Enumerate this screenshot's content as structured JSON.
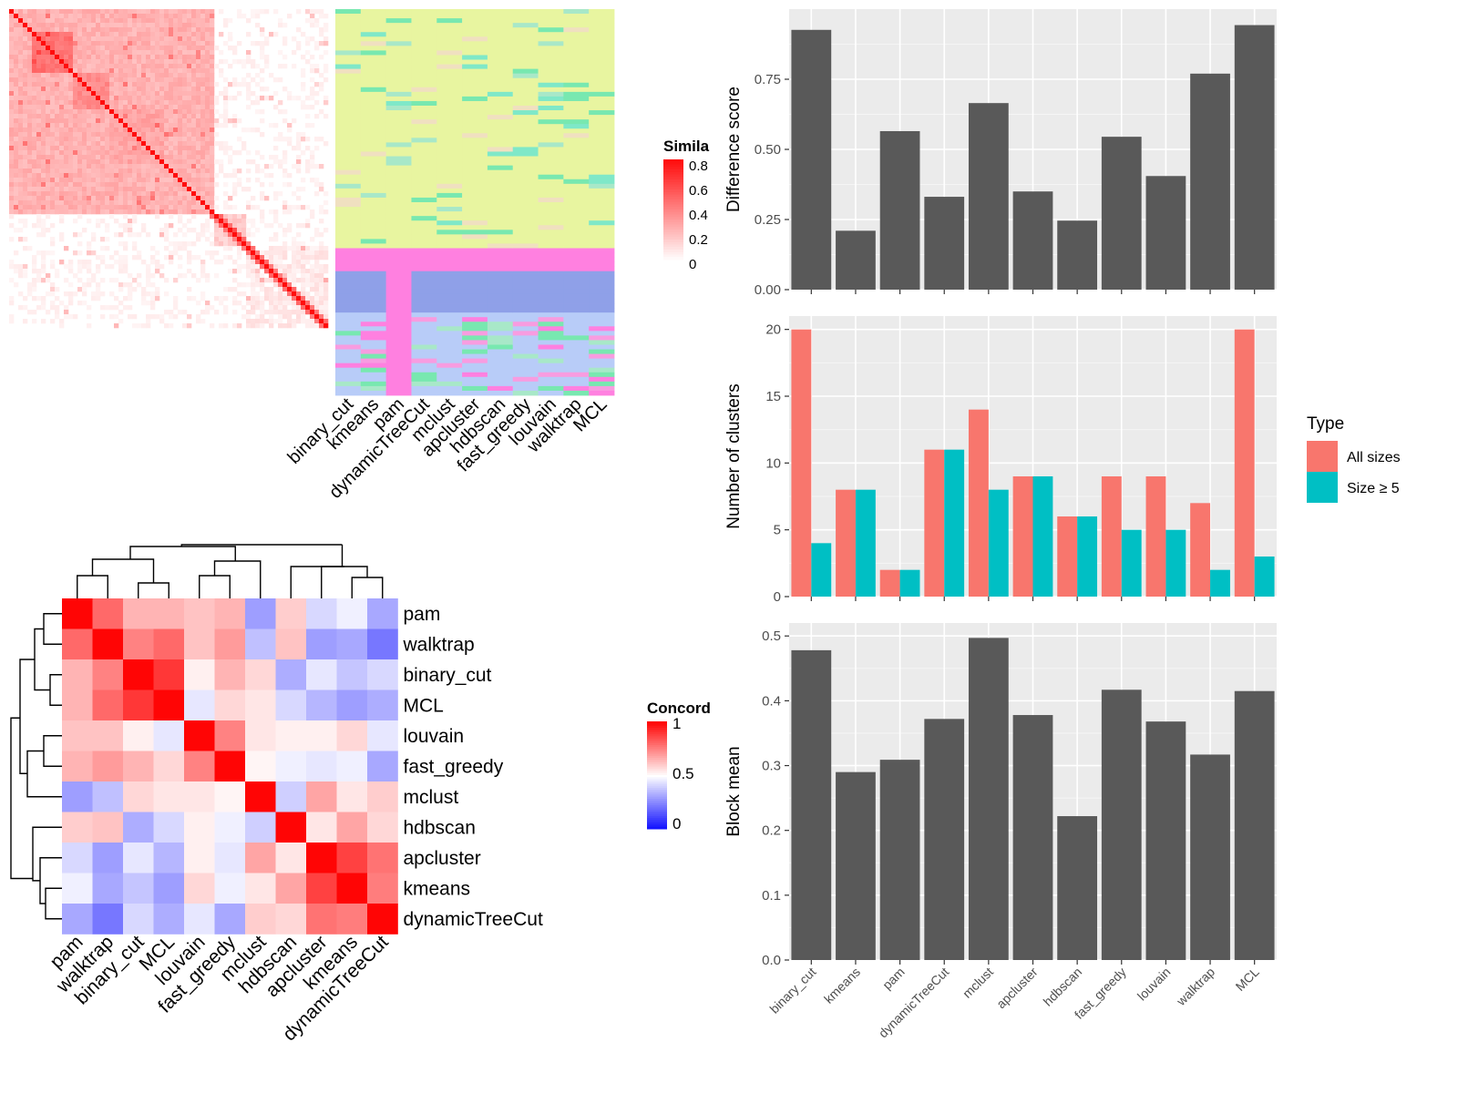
{
  "chart_data": [
    {
      "type": "heatmap",
      "panel": "similarity-matrix",
      "legend_title": "Similarity",
      "legend_ticks": [
        "0.8",
        "0.6",
        "0.4",
        "0.2",
        "0"
      ]
    },
    {
      "type": "heatmap",
      "panel": "cluster-assignments",
      "columns": [
        "binary_cut",
        "kmeans",
        "pam",
        "dynamicTreeCut",
        "mclust",
        "apcluster",
        "hdbscan",
        "fast_greedy",
        "louvain",
        "walktrap",
        "MCL"
      ]
    },
    {
      "type": "heatmap",
      "panel": "concordance-matrix",
      "legend_title": "Concordance",
      "legend_ticks": [
        "1",
        "0.5",
        "0"
      ],
      "labels": [
        "pam",
        "walktrap",
        "binary_cut",
        "MCL",
        "louvain",
        "fast_greedy",
        "mclust",
        "hdbscan",
        "apcluster",
        "kmeans",
        "dynamicTreeCut"
      ],
      "values": [
        [
          1.0,
          0.8,
          0.65,
          0.65,
          0.62,
          0.65,
          0.3,
          0.6,
          0.42,
          0.47,
          0.32
        ],
        [
          0.8,
          1.0,
          0.75,
          0.8,
          0.62,
          0.7,
          0.37,
          0.62,
          0.3,
          0.32,
          0.22
        ],
        [
          0.65,
          0.75,
          1.0,
          0.9,
          0.53,
          0.65,
          0.58,
          0.33,
          0.45,
          0.38,
          0.42
        ],
        [
          0.65,
          0.8,
          0.9,
          1.0,
          0.45,
          0.58,
          0.55,
          0.42,
          0.35,
          0.3,
          0.33
        ],
        [
          0.62,
          0.62,
          0.53,
          0.45,
          1.0,
          0.75,
          0.55,
          0.53,
          0.53,
          0.58,
          0.45
        ],
        [
          0.65,
          0.7,
          0.65,
          0.58,
          0.75,
          1.0,
          0.52,
          0.47,
          0.45,
          0.47,
          0.32
        ],
        [
          0.3,
          0.37,
          0.58,
          0.55,
          0.55,
          0.52,
          1.0,
          0.4,
          0.68,
          0.55,
          0.6
        ],
        [
          0.6,
          0.62,
          0.33,
          0.42,
          0.53,
          0.47,
          0.4,
          1.0,
          0.55,
          0.68,
          0.58
        ],
        [
          0.42,
          0.3,
          0.45,
          0.35,
          0.53,
          0.45,
          0.68,
          0.55,
          1.0,
          0.88,
          0.78
        ],
        [
          0.47,
          0.32,
          0.38,
          0.3,
          0.58,
          0.47,
          0.55,
          0.68,
          0.88,
          1.0,
          0.76
        ],
        [
          0.32,
          0.22,
          0.42,
          0.33,
          0.45,
          0.32,
          0.6,
          0.58,
          0.78,
          0.76,
          1.0
        ]
      ]
    },
    {
      "type": "bar",
      "panel": "difference-score",
      "categories": [
        "binary_cut",
        "kmeans",
        "pam",
        "dynamicTreeCut",
        "mclust",
        "apcluster",
        "hdbscan",
        "fast_greedy",
        "louvain",
        "walktrap",
        "MCL"
      ],
      "values": [
        0.926,
        0.21,
        0.565,
        0.331,
        0.665,
        0.35,
        0.246,
        0.545,
        0.405,
        0.77,
        0.943
      ],
      "ylabel": "Difference score",
      "ylim": [
        0,
        1.0
      ],
      "yticks": [
        "0.00",
        "0.25",
        "0.50",
        "0.75"
      ],
      "grid": true
    },
    {
      "type": "bar",
      "panel": "number-of-clusters",
      "categories": [
        "binary_cut",
        "kmeans",
        "pam",
        "dynamicTreeCut",
        "mclust",
        "apcluster",
        "hdbscan",
        "fast_greedy",
        "louvain",
        "walktrap",
        "MCL"
      ],
      "series": [
        {
          "name": "All sizes",
          "values": [
            20,
            8,
            2,
            11,
            14,
            9,
            6,
            9,
            9,
            7,
            20
          ]
        },
        {
          "name": "Size ≥ 5",
          "values": [
            4,
            8,
            2,
            11,
            8,
            9,
            6,
            5,
            5,
            2,
            3
          ]
        }
      ],
      "ylabel": "Number of clusters",
      "ylim": [
        0,
        21
      ],
      "yticks": [
        "0",
        "5",
        "10",
        "15",
        "20"
      ],
      "legend_title": "Type",
      "legend_position": "right",
      "grid": true
    },
    {
      "type": "bar",
      "panel": "block-mean",
      "categories": [
        "binary_cut",
        "kmeans",
        "pam",
        "dynamicTreeCut",
        "mclust",
        "apcluster",
        "hdbscan",
        "fast_greedy",
        "louvain",
        "walktrap",
        "MCL"
      ],
      "values": [
        0.478,
        0.29,
        0.309,
        0.372,
        0.497,
        0.378,
        0.222,
        0.417,
        0.368,
        0.317,
        0.415
      ],
      "ylabel": "Block mean",
      "ylim": [
        0,
        0.52
      ],
      "yticks": [
        "0.0",
        "0.1",
        "0.2",
        "0.3",
        "0.4",
        "0.5"
      ],
      "grid": true
    }
  ],
  "colors": {
    "bar_dark": "#595959",
    "all_sizes": "#F8766D",
    "size_ge_5": "#00BFC4",
    "panel_bg": "#EBEBEB",
    "grid": "#FFFFFF"
  }
}
